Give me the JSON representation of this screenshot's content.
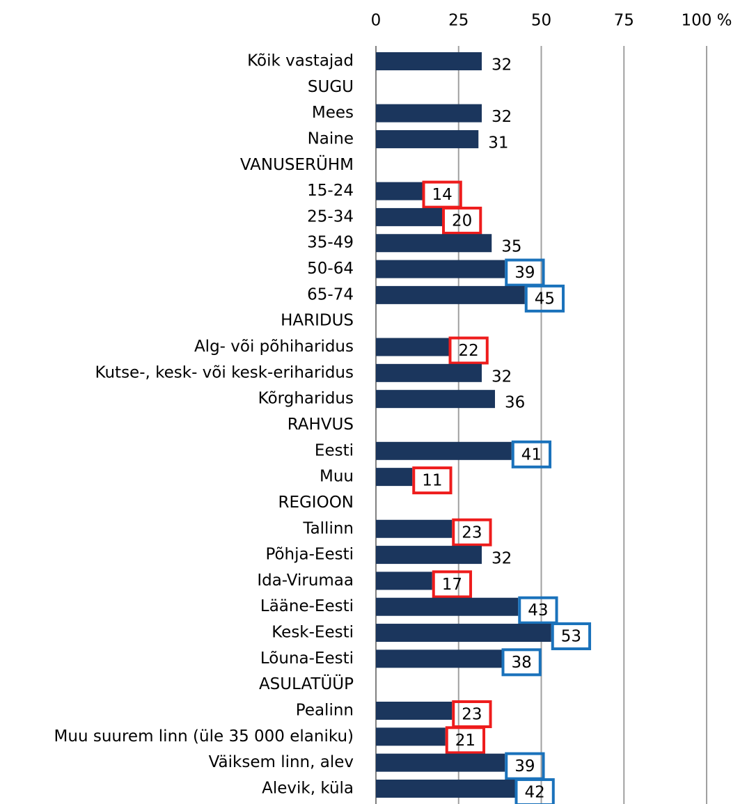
{
  "chart_data": {
    "type": "bar",
    "orientation": "horizontal",
    "categories": [
      "Kõik vastajad",
      "SUGU",
      "Mees",
      "Naine",
      "VANUSERÜHM",
      "15-24",
      "25-34",
      "35-49",
      "50-64",
      "65-74",
      "HARIDUS",
      "Alg- või põhiharidus",
      "Kutse-, kesk- või kesk-eriharidus",
      "Kõrgharidus",
      "RAHVUS",
      "Eesti",
      "Muu",
      "REGIOON",
      "Tallinn",
      "Põhja-Eesti",
      "Ida-Virumaa",
      "Lääne-Eesti",
      "Kesk-Eesti",
      "Lõuna-Eesti",
      "ASULATÜÜP",
      "Pealinn",
      "Muu suurem linn (üle 35 000 elaniku)",
      "Väiksem linn, alev",
      "Alevik, küla"
    ],
    "values": [
      32,
      null,
      32,
      31,
      null,
      14,
      20,
      35,
      39,
      45,
      null,
      22,
      32,
      36,
      null,
      41,
      11,
      null,
      23,
      32,
      17,
      43,
      53,
      38,
      null,
      23,
      21,
      39,
      42
    ],
    "label_box_colors": [
      null,
      null,
      null,
      null,
      null,
      "#ee1c1c",
      "#ee1c1c",
      null,
      "#1a72bb",
      "#1a72bb",
      null,
      "#ee1c1c",
      null,
      null,
      null,
      "#1a72bb",
      "#ee1c1c",
      null,
      "#ee1c1c",
      null,
      "#ee1c1c",
      "#1a72bb",
      "#1a72bb",
      "#1a72bb",
      null,
      "#ee1c1c",
      "#ee1c1c",
      "#1a72bb",
      "#1a72bb"
    ],
    "color": "#1b365d",
    "xlim": [
      0,
      100
    ],
    "xticks": [
      0,
      25,
      50,
      75,
      {
        "value": 100,
        "label": "100 %"
      }
    ],
    "grid": true
  }
}
